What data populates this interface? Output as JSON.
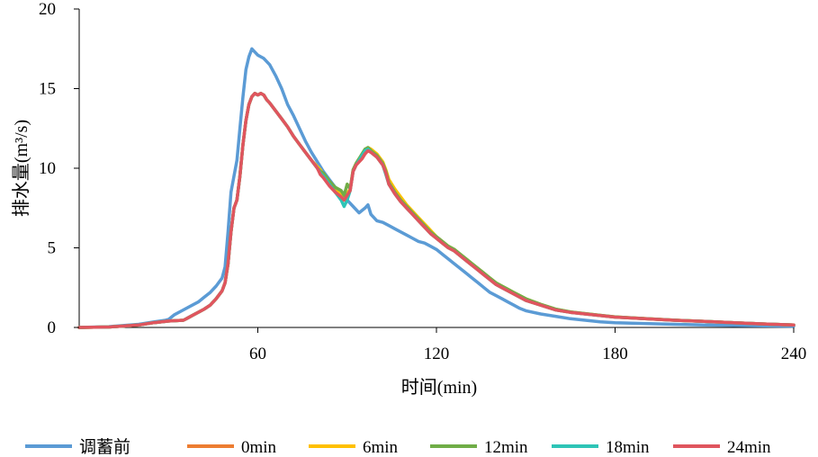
{
  "chart_data": {
    "type": "line",
    "title": "",
    "xlabel": "时间(min)",
    "ylabel": "排水量(m³/s)",
    "xlim": [
      0,
      240
    ],
    "ylim": [
      0,
      20
    ],
    "xticks": [
      60,
      120,
      180,
      240
    ],
    "yticks": [
      0,
      5,
      10,
      15,
      20
    ],
    "grid": false,
    "legend_position": "bottom",
    "series": [
      {
        "name": "调蓄前",
        "color": "#5B9BD5",
        "x": [
          0,
          10,
          20,
          25,
          29,
          30,
          32,
          35,
          38,
          40,
          42,
          44,
          46,
          48,
          49,
          50,
          51,
          52,
          53,
          54,
          55,
          56,
          57,
          58,
          59,
          60,
          62,
          64,
          66,
          68,
          70,
          72,
          74,
          76,
          78,
          80,
          82,
          84,
          86,
          88,
          90,
          92,
          94,
          96,
          97,
          98,
          100,
          102,
          104,
          106,
          108,
          110,
          112,
          114,
          116,
          118,
          120,
          122,
          124,
          126,
          128,
          130,
          132,
          134,
          136,
          138,
          140,
          142,
          144,
          146,
          148,
          150,
          155,
          160,
          165,
          170,
          175,
          180,
          190,
          200,
          210,
          220,
          230,
          240
        ],
        "y": [
          0,
          0.05,
          0.2,
          0.35,
          0.45,
          0.5,
          0.8,
          1.1,
          1.4,
          1.6,
          1.9,
          2.2,
          2.6,
          3.1,
          3.8,
          6.0,
          8.5,
          9.5,
          10.5,
          12.5,
          14.5,
          16.2,
          17.0,
          17.5,
          17.3,
          17.1,
          16.9,
          16.5,
          15.8,
          15.0,
          14.0,
          13.3,
          12.5,
          11.7,
          11.0,
          10.4,
          9.8,
          9.3,
          8.8,
          8.4,
          8.0,
          7.6,
          7.2,
          7.5,
          7.7,
          7.1,
          6.7,
          6.6,
          6.4,
          6.2,
          6.0,
          5.8,
          5.6,
          5.4,
          5.3,
          5.1,
          4.9,
          4.6,
          4.3,
          4.0,
          3.7,
          3.4,
          3.1,
          2.8,
          2.5,
          2.2,
          2.0,
          1.8,
          1.6,
          1.4,
          1.2,
          1.05,
          0.85,
          0.7,
          0.55,
          0.45,
          0.35,
          0.3,
          0.25,
          0.2,
          0.16,
          0.13,
          0.1,
          0.08
        ]
      },
      {
        "name": "0min",
        "color": "#ED7D31",
        "x": [
          0,
          10,
          20,
          25,
          30,
          35,
          36,
          38,
          40,
          42,
          44,
          46,
          48,
          49,
          50,
          51,
          52,
          53,
          54,
          55,
          56,
          57,
          58,
          59,
          60,
          61,
          62,
          63,
          64,
          66,
          68,
          70,
          72,
          74,
          76,
          78,
          80,
          81,
          82,
          84,
          86,
          88,
          89,
          90,
          91,
          92,
          93,
          94,
          95,
          96,
          97,
          98,
          100,
          102,
          103,
          104,
          106,
          108,
          110,
          112,
          114,
          116,
          118,
          120,
          122,
          124,
          126,
          128,
          130,
          132,
          134,
          136,
          138,
          140,
          142,
          144,
          146,
          148,
          150,
          155,
          160,
          165,
          170,
          175,
          180,
          190,
          200,
          210,
          220,
          230,
          240
        ],
        "y": [
          0,
          0.03,
          0.15,
          0.3,
          0.4,
          0.45,
          0.55,
          0.75,
          0.95,
          1.15,
          1.4,
          1.8,
          2.3,
          2.8,
          4.0,
          6.0,
          7.5,
          8.0,
          9.5,
          11.5,
          13.0,
          14.0,
          14.5,
          14.7,
          14.6,
          14.7,
          14.6,
          14.3,
          14.1,
          13.6,
          13.1,
          12.6,
          12.0,
          11.5,
          11.0,
          10.5,
          10.0,
          9.7,
          9.5,
          9.0,
          8.5,
          8.2,
          8.0,
          8.3,
          8.6,
          9.8,
          10.2,
          10.4,
          10.6,
          10.9,
          11.1,
          11.0,
          10.7,
          10.2,
          9.7,
          9.0,
          8.4,
          7.9,
          7.5,
          7.1,
          6.7,
          6.3,
          5.9,
          5.6,
          5.3,
          5.0,
          4.8,
          4.5,
          4.2,
          3.9,
          3.6,
          3.3,
          3.0,
          2.7,
          2.5,
          2.3,
          2.1,
          1.9,
          1.7,
          1.4,
          1.1,
          0.95,
          0.85,
          0.75,
          0.65,
          0.55,
          0.45,
          0.38,
          0.3,
          0.22,
          0.15
        ]
      },
      {
        "name": "6min",
        "color": "#FFC000",
        "x": [
          0,
          10,
          20,
          25,
          30,
          35,
          36,
          38,
          40,
          42,
          44,
          46,
          48,
          49,
          50,
          51,
          52,
          53,
          54,
          55,
          56,
          57,
          58,
          59,
          60,
          61,
          62,
          63,
          64,
          66,
          68,
          70,
          72,
          74,
          76,
          78,
          80,
          81,
          82,
          84,
          86,
          88,
          89,
          90,
          91,
          92,
          93,
          94,
          95,
          96,
          97,
          98,
          100,
          102,
          103,
          104,
          106,
          108,
          110,
          112,
          114,
          116,
          118,
          120,
          122,
          124,
          126,
          128,
          130,
          132,
          134,
          136,
          138,
          140,
          142,
          144,
          146,
          148,
          150,
          155,
          160,
          165,
          170,
          175,
          180,
          190,
          200,
          210,
          220,
          230,
          240
        ],
        "y": [
          0,
          0.03,
          0.15,
          0.3,
          0.4,
          0.45,
          0.55,
          0.75,
          0.95,
          1.15,
          1.4,
          1.8,
          2.3,
          2.8,
          4.0,
          6.0,
          7.5,
          8.0,
          9.5,
          11.5,
          13.0,
          14.0,
          14.5,
          14.7,
          14.6,
          14.7,
          14.6,
          14.3,
          14.1,
          13.6,
          13.1,
          12.6,
          12.0,
          11.5,
          11.0,
          10.5,
          10.1,
          9.9,
          9.6,
          9.1,
          8.7,
          8.4,
          8.2,
          8.4,
          8.7,
          9.9,
          10.3,
          10.6,
          10.8,
          11.1,
          11.3,
          11.2,
          10.9,
          10.4,
          9.9,
          9.3,
          8.7,
          8.2,
          7.7,
          7.3,
          6.9,
          6.5,
          6.1,
          5.7,
          5.4,
          5.1,
          4.9,
          4.6,
          4.3,
          4.0,
          3.7,
          3.4,
          3.1,
          2.8,
          2.6,
          2.4,
          2.2,
          2.0,
          1.8,
          1.45,
          1.15,
          0.98,
          0.87,
          0.76,
          0.66,
          0.56,
          0.46,
          0.38,
          0.3,
          0.22,
          0.15
        ]
      },
      {
        "name": "12min",
        "color": "#70AD47",
        "x": [
          0,
          10,
          20,
          25,
          30,
          35,
          36,
          38,
          40,
          42,
          44,
          46,
          48,
          49,
          50,
          51,
          52,
          53,
          54,
          55,
          56,
          57,
          58,
          59,
          60,
          61,
          62,
          63,
          64,
          66,
          68,
          70,
          72,
          74,
          76,
          78,
          80,
          81,
          82,
          84,
          86,
          88,
          89,
          90,
          91,
          92,
          93,
          94,
          95,
          96,
          97,
          98,
          100,
          102,
          103,
          104,
          106,
          108,
          110,
          112,
          114,
          116,
          118,
          120,
          122,
          124,
          126,
          128,
          130,
          132,
          134,
          136,
          138,
          140,
          142,
          144,
          146,
          148,
          150,
          155,
          160,
          165,
          170,
          175,
          180,
          190,
          200,
          210,
          220,
          230,
          240
        ],
        "y": [
          0,
          0.03,
          0.15,
          0.3,
          0.4,
          0.45,
          0.55,
          0.75,
          0.95,
          1.15,
          1.4,
          1.8,
          2.3,
          2.8,
          4.0,
          6.0,
          7.5,
          8.0,
          9.5,
          11.5,
          13.0,
          14.0,
          14.5,
          14.7,
          14.6,
          14.7,
          14.6,
          14.3,
          14.1,
          13.6,
          13.1,
          12.6,
          12.0,
          11.5,
          11.0,
          10.5,
          10.0,
          9.8,
          9.7,
          9.2,
          8.8,
          8.6,
          8.3,
          9.0,
          8.7,
          9.9,
          10.3,
          10.6,
          10.9,
          11.2,
          11.3,
          11.1,
          10.8,
          10.3,
          9.8,
          9.1,
          8.5,
          8.0,
          7.6,
          7.2,
          6.8,
          6.4,
          6.0,
          5.7,
          5.4,
          5.1,
          4.9,
          4.6,
          4.3,
          4.0,
          3.7,
          3.4,
          3.1,
          2.8,
          2.6,
          2.4,
          2.2,
          2.0,
          1.8,
          1.45,
          1.15,
          0.98,
          0.87,
          0.76,
          0.66,
          0.56,
          0.46,
          0.38,
          0.3,
          0.22,
          0.15
        ]
      },
      {
        "name": "18min",
        "color": "#2EC4B6",
        "x": [
          0,
          10,
          20,
          25,
          30,
          35,
          36,
          38,
          40,
          42,
          44,
          46,
          48,
          49,
          50,
          51,
          52,
          53,
          54,
          55,
          56,
          57,
          58,
          59,
          60,
          61,
          62,
          63,
          64,
          66,
          68,
          70,
          72,
          74,
          76,
          78,
          80,
          81,
          82,
          84,
          86,
          88,
          89,
          90,
          91,
          92,
          93,
          94,
          95,
          96,
          97,
          98,
          100,
          102,
          103,
          104,
          106,
          108,
          110,
          112,
          114,
          116,
          118,
          120,
          122,
          124,
          126,
          128,
          130,
          132,
          134,
          136,
          138,
          140,
          142,
          144,
          146,
          148,
          150,
          155,
          160,
          165,
          170,
          175,
          180,
          190,
          200,
          210,
          220,
          230,
          240
        ],
        "y": [
          0,
          0.03,
          0.15,
          0.3,
          0.4,
          0.45,
          0.55,
          0.75,
          0.95,
          1.15,
          1.4,
          1.8,
          2.3,
          2.8,
          4.0,
          6.0,
          7.5,
          8.0,
          9.5,
          11.5,
          13.0,
          14.0,
          14.5,
          14.7,
          14.6,
          14.7,
          14.6,
          14.3,
          14.1,
          13.6,
          13.1,
          12.6,
          12.0,
          11.5,
          11.0,
          10.5,
          10.0,
          9.7,
          9.5,
          9.0,
          8.5,
          8.0,
          7.6,
          8.0,
          8.6,
          9.8,
          10.2,
          10.5,
          10.8,
          11.1,
          11.2,
          11.0,
          10.7,
          10.2,
          9.6,
          9.0,
          8.4,
          7.9,
          7.5,
          7.1,
          6.7,
          6.3,
          5.9,
          5.6,
          5.3,
          5.0,
          4.8,
          4.5,
          4.2,
          3.9,
          3.6,
          3.3,
          3.0,
          2.7,
          2.5,
          2.3,
          2.1,
          1.9,
          1.7,
          1.4,
          1.1,
          0.95,
          0.85,
          0.75,
          0.65,
          0.55,
          0.45,
          0.38,
          0.3,
          0.22,
          0.15
        ]
      },
      {
        "name": "24min",
        "color": "#E0555E",
        "x": [
          0,
          10,
          20,
          25,
          30,
          35,
          36,
          38,
          40,
          42,
          44,
          46,
          48,
          49,
          50,
          51,
          52,
          53,
          54,
          55,
          56,
          57,
          58,
          59,
          60,
          61,
          62,
          63,
          64,
          66,
          68,
          70,
          72,
          74,
          76,
          78,
          80,
          81,
          82,
          84,
          86,
          88,
          89,
          90,
          91,
          92,
          93,
          94,
          95,
          96,
          97,
          98,
          100,
          102,
          103,
          104,
          106,
          108,
          110,
          112,
          114,
          116,
          118,
          120,
          122,
          124,
          126,
          128,
          130,
          132,
          134,
          136,
          138,
          140,
          142,
          144,
          146,
          148,
          150,
          155,
          160,
          165,
          170,
          175,
          180,
          190,
          200,
          210,
          220,
          230,
          240
        ],
        "y": [
          0,
          0.03,
          0.15,
          0.3,
          0.4,
          0.45,
          0.55,
          0.75,
          0.95,
          1.15,
          1.4,
          1.8,
          2.3,
          2.8,
          4.0,
          6.0,
          7.5,
          8.0,
          9.5,
          11.5,
          13.0,
          14.0,
          14.5,
          14.7,
          14.6,
          14.7,
          14.6,
          14.3,
          14.1,
          13.6,
          13.1,
          12.6,
          12.0,
          11.5,
          11.0,
          10.5,
          10.0,
          9.6,
          9.4,
          8.9,
          8.5,
          8.2,
          8.0,
          8.3,
          8.6,
          9.8,
          10.2,
          10.4,
          10.6,
          10.9,
          11.1,
          11.0,
          10.7,
          10.2,
          9.7,
          9.0,
          8.4,
          7.9,
          7.5,
          7.1,
          6.7,
          6.3,
          5.9,
          5.6,
          5.3,
          5.0,
          4.8,
          4.5,
          4.2,
          3.9,
          3.6,
          3.3,
          3.0,
          2.7,
          2.5,
          2.3,
          2.1,
          1.9,
          1.7,
          1.4,
          1.1,
          0.95,
          0.85,
          0.75,
          0.65,
          0.55,
          0.45,
          0.38,
          0.3,
          0.22,
          0.15
        ]
      }
    ]
  }
}
